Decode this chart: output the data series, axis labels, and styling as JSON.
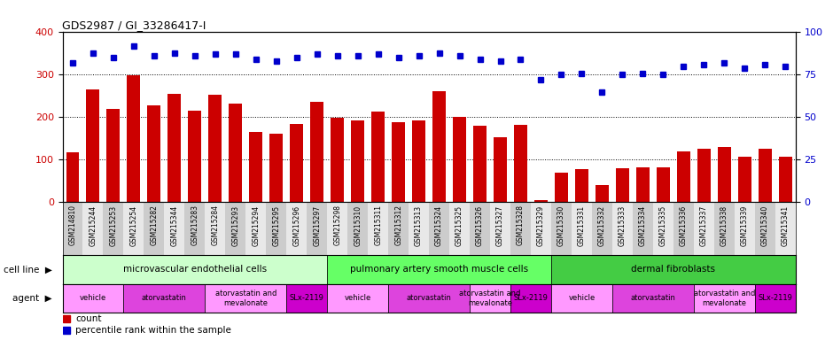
{
  "title": "GDS2987 / GI_33286417-I",
  "samples": [
    "GSM214810",
    "GSM215244",
    "GSM215253",
    "GSM215254",
    "GSM215282",
    "GSM215344",
    "GSM215283",
    "GSM215284",
    "GSM215293",
    "GSM215294",
    "GSM215295",
    "GSM215296",
    "GSM215297",
    "GSM215298",
    "GSM215310",
    "GSM215311",
    "GSM215312",
    "GSM215313",
    "GSM215324",
    "GSM215325",
    "GSM215326",
    "GSM215327",
    "GSM215328",
    "GSM215329",
    "GSM215330",
    "GSM215331",
    "GSM215332",
    "GSM215333",
    "GSM215334",
    "GSM215335",
    "GSM215336",
    "GSM215337",
    "GSM215338",
    "GSM215339",
    "GSM215340",
    "GSM215341"
  ],
  "counts": [
    118,
    265,
    220,
    299,
    228,
    255,
    215,
    253,
    232,
    165,
    162,
    185,
    237,
    198,
    192,
    213,
    189,
    192,
    262,
    200,
    181,
    154,
    183,
    5,
    70,
    78,
    40,
    80,
    83,
    83,
    119,
    125,
    130,
    108,
    125,
    108
  ],
  "percentiles": [
    82,
    88,
    85,
    92,
    86,
    88,
    86,
    87,
    87,
    84,
    83,
    85,
    87,
    86,
    86,
    87,
    85,
    86,
    88,
    86,
    84,
    83,
    84,
    72,
    75,
    76,
    65,
    75,
    76,
    75,
    80,
    81,
    82,
    79,
    81,
    80
  ],
  "bar_color": "#cc0000",
  "dot_color": "#0000cc",
  "ylim_left": [
    0,
    400
  ],
  "ylim_right": [
    0,
    100
  ],
  "yticks_left": [
    0,
    100,
    200,
    300,
    400
  ],
  "yticks_right": [
    0,
    25,
    50,
    75,
    100
  ],
  "cell_line_groups": [
    {
      "label": "microvascular endothelial cells",
      "start": 0,
      "end": 13,
      "color": "#ccffcc"
    },
    {
      "label": "pulmonary artery smooth muscle cells",
      "start": 13,
      "end": 24,
      "color": "#66ff66"
    },
    {
      "label": "dermal fibroblasts",
      "start": 24,
      "end": 36,
      "color": "#44cc44"
    }
  ],
  "agent_groups": [
    {
      "label": "vehicle",
      "start": 0,
      "end": 3,
      "color": "#ff99ff"
    },
    {
      "label": "atorvastatin",
      "start": 3,
      "end": 7,
      "color": "#dd44dd"
    },
    {
      "label": "atorvastatin and\nmevalonate",
      "start": 7,
      "end": 11,
      "color": "#ff99ff"
    },
    {
      "label": "SLx-2119",
      "start": 11,
      "end": 13,
      "color": "#cc00cc"
    },
    {
      "label": "vehicle",
      "start": 13,
      "end": 16,
      "color": "#ff99ff"
    },
    {
      "label": "atorvastatin",
      "start": 16,
      "end": 20,
      "color": "#dd44dd"
    },
    {
      "label": "atorvastatin and\nmevalonate",
      "start": 20,
      "end": 22,
      "color": "#ff99ff"
    },
    {
      "label": "SLx-2119",
      "start": 22,
      "end": 24,
      "color": "#cc00cc"
    },
    {
      "label": "vehicle",
      "start": 24,
      "end": 27,
      "color": "#ff99ff"
    },
    {
      "label": "atorvastatin",
      "start": 27,
      "end": 31,
      "color": "#dd44dd"
    },
    {
      "label": "atorvastatin and\nmevalonate",
      "start": 31,
      "end": 34,
      "color": "#ff99ff"
    },
    {
      "label": "SLx-2119",
      "start": 34,
      "end": 36,
      "color": "#cc00cc"
    }
  ]
}
